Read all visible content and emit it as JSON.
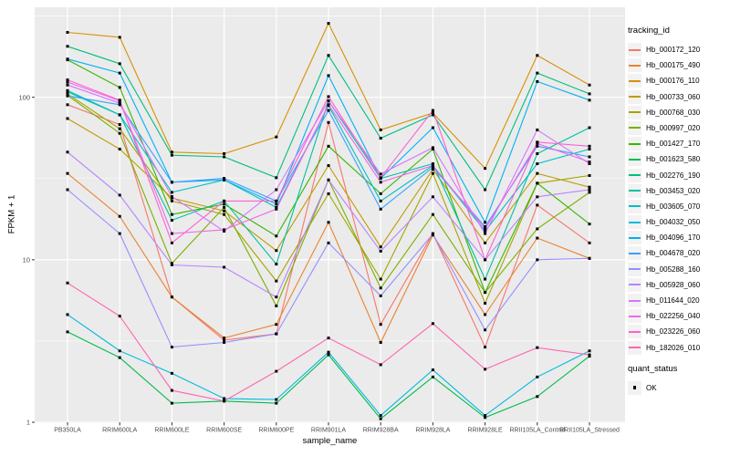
{
  "figure": {
    "background": "#FFFFFF",
    "panel_bg": "#EBEBEB",
    "grid_color": "#FFFFFF",
    "tick_label_color": "#4D4D4D"
  },
  "chart_data": {
    "type": "line",
    "title": "",
    "xlabel": "sample_name",
    "ylabel": "FPKM + 1",
    "y_scale": "log10",
    "ylim": [
      1,
      360
    ],
    "y_ticks": [
      1,
      10,
      100
    ],
    "y_minor_ticks": [
      3.1623,
      31.6228,
      316.228
    ],
    "grid": true,
    "legend_position": "right",
    "legend_title": "tracking_id",
    "shape_legend": {
      "title": "quant_status",
      "items": [
        "OK"
      ],
      "marker": "black-square"
    },
    "categories": [
      "PB350LA",
      "RRIM600LA",
      "RRIM600LE",
      "RRIM600SE",
      "RRIM600PE",
      "RRIM901LA",
      "RRIM928BA",
      "RRIM928LA",
      "RRIM928LE",
      "RRII105LA_Control",
      "RRII105LA_Stressed"
    ],
    "series": [
      {
        "name": "Hb_000172_120",
        "color": "#F8766D",
        "values": [
          90,
          68,
          5.9,
          3.2,
          3.5,
          70,
          4.0,
          14.5,
          2.9,
          21.7,
          12.7
        ]
      },
      {
        "name": "Hb_000175_490",
        "color": "#EA8331",
        "values": [
          34,
          18.5,
          5.9,
          3.3,
          4.0,
          17,
          3.1,
          14.2,
          4.6,
          13.6,
          10.2
        ]
      },
      {
        "name": "Hb_000176_110",
        "color": "#D89000",
        "values": [
          251,
          234,
          46,
          45,
          57,
          285,
          63,
          80,
          36.5,
          181,
          119
        ]
      },
      {
        "name": "Hb_000733_060",
        "color": "#C09B00",
        "values": [
          74,
          48,
          24,
          20,
          11.4,
          38,
          12,
          36,
          12.7,
          34,
          28
        ]
      },
      {
        "name": "Hb_000768_030",
        "color": "#A3A500",
        "values": [
          105,
          64,
          23,
          19,
          7.4,
          25.5,
          7.6,
          34,
          5.4,
          29.6,
          33
        ]
      },
      {
        "name": "Hb_000997_020",
        "color": "#7CAE00",
        "values": [
          103,
          60,
          9.5,
          21,
          5.2,
          31,
          6.7,
          19,
          6.3,
          15.5,
          26
        ]
      },
      {
        "name": "Hb_001427_170",
        "color": "#39B600",
        "values": [
          170,
          115,
          19,
          22,
          14,
          50,
          25.5,
          48,
          6.3,
          29.6,
          16.6
        ]
      },
      {
        "name": "Hb_001623_580",
        "color": "#00BB4E",
        "values": [
          3.6,
          2.5,
          1.31,
          1.35,
          1.31,
          2.6,
          1.05,
          1.9,
          1.07,
          1.44,
          2.55
        ]
      },
      {
        "name": "Hb_002276_190",
        "color": "#00BF7D",
        "values": [
          206,
          161,
          44,
          43,
          32,
          181,
          56,
          78,
          27,
          141,
          105
        ]
      },
      {
        "name": "Hb_003453_020",
        "color": "#00C1A3",
        "values": [
          108,
          78,
          17.5,
          23,
          9.4,
          95,
          31.7,
          39,
          7.6,
          45,
          65
        ]
      },
      {
        "name": "Hb_003605_070",
        "color": "#00BFC4",
        "values": [
          110,
          78,
          26,
          31,
          21,
          89,
          23,
          38,
          15,
          39,
          48
        ]
      },
      {
        "name": "Hb_004032_050",
        "color": "#00BADE",
        "values": [
          4.6,
          2.75,
          2.0,
          1.4,
          1.38,
          2.7,
          1.1,
          2.1,
          1.1,
          1.9,
          2.75
        ]
      },
      {
        "name": "Hb_004096_170",
        "color": "#00B0F6",
        "values": [
          172,
          141,
          30,
          31,
          22,
          136,
          31.7,
          65,
          17,
          125,
          96
        ]
      },
      {
        "name": "Hb_004678_020",
        "color": "#35A2FF",
        "values": [
          102,
          90,
          30,
          31.7,
          23,
          83,
          20.5,
          37,
          16,
          50,
          43
        ]
      },
      {
        "name": "Hb_005288_160",
        "color": "#9590FF",
        "values": [
          27,
          14.5,
          2.9,
          3.1,
          3.5,
          12.7,
          6.0,
          14.4,
          3.7,
          10,
          10.2
        ]
      },
      {
        "name": "Hb_005928_060",
        "color": "#B983FF",
        "values": [
          46,
          25,
          9.3,
          9.0,
          5.9,
          31,
          11.3,
          24.4,
          10,
          24.4,
          27
        ]
      },
      {
        "name": "Hb_011644_020",
        "color": "#D575FE",
        "values": [
          119,
          92,
          24.5,
          15,
          27,
          95,
          33.7,
          49,
          14.5,
          63,
          39
        ]
      },
      {
        "name": "Hb_022256_040",
        "color": "#EF67EB",
        "values": [
          124,
          95,
          14.5,
          15.3,
          20.5,
          90,
          30,
          38,
          15.5,
          52,
          40
        ]
      },
      {
        "name": "Hb_023226_060",
        "color": "#FD61D1",
        "values": [
          128,
          96,
          12.7,
          23,
          23,
          101,
          32,
          83,
          10,
          53,
          50
        ]
      },
      {
        "name": "Hb_182026_010",
        "color": "#FF65B0",
        "values": [
          7.2,
          4.5,
          1.57,
          1.35,
          2.06,
          3.3,
          2.26,
          4.05,
          2.12,
          2.88,
          2.6
        ]
      }
    ],
    "marker": {
      "shape": "square",
      "color": "#000000",
      "size": 3
    }
  }
}
